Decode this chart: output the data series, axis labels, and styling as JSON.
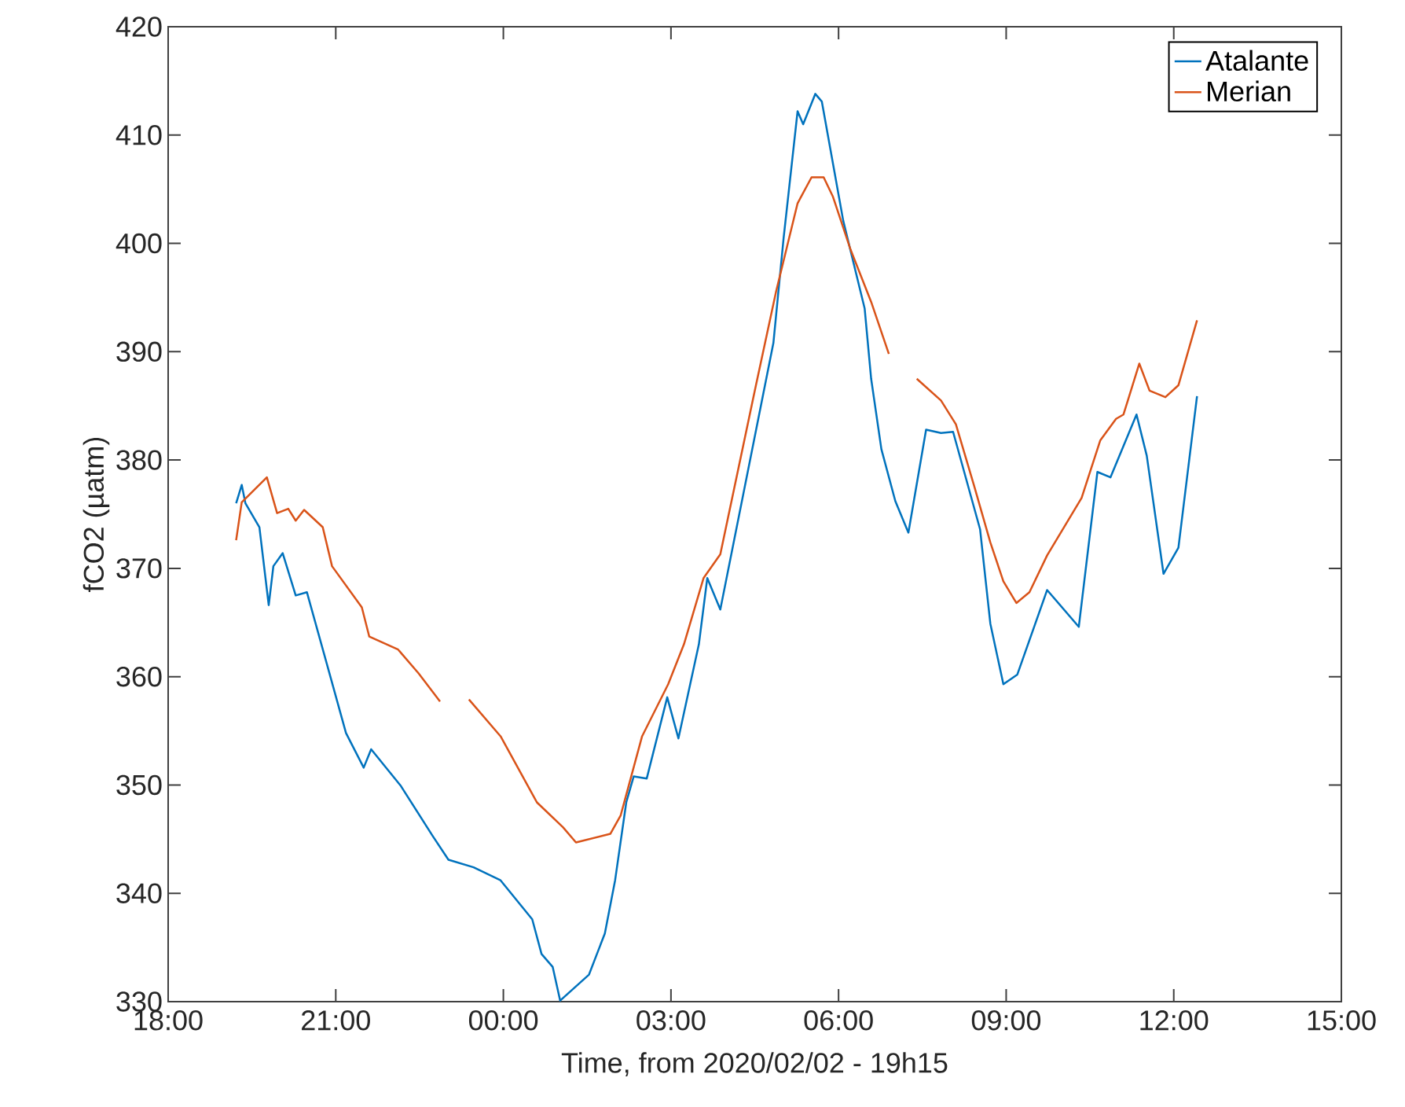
{
  "chart_data": {
    "type": "line",
    "xlabel": "Time, from 2020/02/02 - 19h15",
    "ylabel": "fCO2 (µatm)",
    "xlim": [
      "2020-02-02T18:00",
      "2020-02-03T15:00"
    ],
    "ylim": [
      330,
      420
    ],
    "xticks": [
      {
        "value": "2020-02-02T18:00",
        "label": "18:00"
      },
      {
        "value": "2020-02-02T21:00",
        "label": "21:00"
      },
      {
        "value": "2020-02-03T00:00",
        "label": "00:00"
      },
      {
        "value": "2020-02-03T03:00",
        "label": "03:00"
      },
      {
        "value": "2020-02-03T06:00",
        "label": "06:00"
      },
      {
        "value": "2020-02-03T09:00",
        "label": "09:00"
      },
      {
        "value": "2020-02-03T12:00",
        "label": "12:00"
      },
      {
        "value": "2020-02-03T15:00",
        "label": "15:00"
      }
    ],
    "yticks": [
      330,
      340,
      350,
      360,
      370,
      380,
      390,
      400,
      410,
      420
    ],
    "legend": "top right",
    "grid": false,
    "series": [
      {
        "name": "Atalante",
        "color": "#0072bd",
        "x": [
          "2020-02-02T19:13",
          "2020-02-02T19:19",
          "2020-02-02T19:23",
          "2020-02-02T19:38",
          "2020-02-02T19:48",
          "2020-02-02T19:53",
          "2020-02-02T20:03",
          "2020-02-02T20:17",
          "2020-02-02T20:29",
          "2020-02-02T20:51",
          "2020-02-02T21:11",
          "2020-02-02T21:30",
          "2020-02-02T21:38",
          "2020-02-02T22:10",
          "2020-02-02T22:44",
          "2020-02-02T23:01",
          "2020-02-02T23:28",
          "2020-02-02T23:57",
          "2020-02-03T00:31",
          "2020-02-03T00:41",
          "2020-02-03T00:53",
          "2020-02-03T01:01",
          "2020-02-03T01:32",
          "2020-02-03T01:49",
          "2020-02-03T02:00",
          "2020-02-03T02:12",
          "2020-02-03T02:20",
          "2020-02-03T02:34",
          "2020-02-03T02:56",
          "2020-02-03T03:08",
          "2020-02-03T03:30",
          "2020-02-03T03:39",
          "2020-02-03T03:53",
          "2020-02-03T04:50",
          "2020-02-03T05:01",
          "2020-02-03T05:16",
          "2020-02-03T05:22",
          "2020-02-03T05:35",
          "2020-02-03T05:42",
          "2020-02-03T06:05",
          "2020-02-03T06:28",
          "2020-02-03T06:35",
          "2020-02-03T06:46",
          "2020-02-03T07:01",
          "2020-02-03T07:15",
          "2020-02-03T07:34",
          "2020-02-03T07:50",
          "2020-02-03T08:03",
          "2020-02-03T08:32",
          "2020-02-03T08:43",
          "2020-02-03T08:57",
          "2020-02-03T09:12",
          "2020-02-03T09:44",
          "2020-02-03T10:18",
          "2020-02-03T10:38",
          "2020-02-03T10:52",
          "2020-02-03T11:20",
          "2020-02-03T11:31",
          "2020-02-03T11:49",
          "2020-02-03T12:05",
          "2020-02-03T12:25"
        ],
        "values": [
          376.0,
          377.7,
          376.0,
          373.8,
          366.6,
          370.2,
          371.4,
          367.5,
          367.8,
          361.0,
          354.8,
          351.6,
          353.3,
          349.9,
          345.3,
          343.1,
          342.4,
          341.2,
          337.6,
          334.4,
          333.2,
          330.1,
          332.5,
          336.3,
          341.2,
          348.4,
          350.8,
          350.6,
          358.1,
          354.3,
          363.0,
          369.1,
          366.2,
          390.8,
          400.5,
          412.2,
          411.0,
          413.8,
          413.1,
          402.1,
          394.0,
          387.5,
          381.0,
          376.2,
          373.3,
          382.8,
          382.5,
          382.6,
          373.6,
          364.9,
          359.3,
          360.2,
          368.0,
          364.6,
          378.9,
          378.4,
          384.2,
          380.4,
          369.5,
          371.9,
          385.9
        ]
      },
      {
        "name": "Merian",
        "color": "#d95319",
        "x": [
          "2020-02-02T19:13",
          "2020-02-02T19:19",
          "2020-02-02T19:46",
          "2020-02-02T19:57",
          "2020-02-02T20:09",
          "2020-02-02T20:17",
          "2020-02-02T20:26",
          "2020-02-02T20:46",
          "2020-02-02T20:56",
          "2020-02-02T21:28",
          "2020-02-02T21:36",
          "2020-02-02T22:07",
          "2020-02-02T22:29",
          "2020-02-02T22:52",
          "2020-02-02T23:06",
          "2020-02-02T23:23",
          "2020-02-02T23:57",
          "2020-02-03T00:36",
          "2020-02-03T01:04",
          "2020-02-03T01:18",
          "2020-02-03T01:55",
          "2020-02-03T02:06",
          "2020-02-03T02:29",
          "2020-02-03T02:57",
          "2020-02-03T03:14",
          "2020-02-03T03:35",
          "2020-02-03T03:53",
          "2020-02-03T04:31",
          "2020-02-03T04:53",
          "2020-02-03T05:16",
          "2020-02-03T05:31",
          "2020-02-03T05:44",
          "2020-02-03T05:54",
          "2020-02-03T06:13",
          "2020-02-03T06:35",
          "2020-02-03T06:54",
          "2020-02-03T07:06",
          "2020-02-03T07:24",
          "2020-02-03T07:50",
          "2020-02-03T08:06",
          "2020-02-03T08:26",
          "2020-02-03T08:43",
          "2020-02-03T08:57",
          "2020-02-03T09:11",
          "2020-02-03T09:25",
          "2020-02-03T09:44",
          "2020-02-03T10:21",
          "2020-02-03T10:41",
          "2020-02-03T10:58",
          "2020-02-03T11:06",
          "2020-02-03T11:23",
          "2020-02-03T11:34",
          "2020-02-03T11:51",
          "2020-02-03T12:05",
          "2020-02-03T12:25"
        ],
        "values": [
          372.6,
          376.1,
          378.4,
          375.1,
          375.5,
          374.4,
          375.4,
          373.8,
          370.2,
          366.4,
          363.7,
          362.5,
          360.3,
          357.7,
          null,
          357.9,
          354.5,
          348.4,
          346.1,
          344.7,
          345.5,
          347.2,
          354.5,
          359.3,
          363.0,
          369.1,
          371.3,
          386.8,
          395.6,
          403.7,
          406.1,
          406.1,
          404.3,
          399.4,
          394.6,
          389.8,
          null,
          387.5,
          385.5,
          383.3,
          377.5,
          372.4,
          368.8,
          366.8,
          367.8,
          371.2,
          376.5,
          381.8,
          383.8,
          384.2,
          388.9,
          386.4,
          385.8,
          386.9,
          392.9
        ]
      }
    ]
  }
}
